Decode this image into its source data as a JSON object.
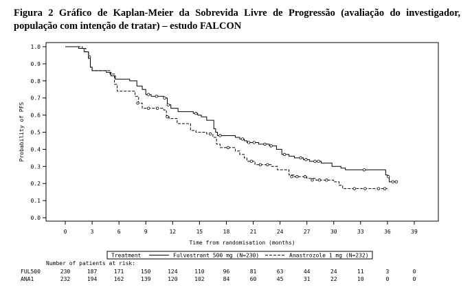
{
  "figure_title": "Figura 2 Gráfico de Kaplan-Meier da Sobrevida Livre de Progressão (avaliação do investigador, população com intenção de tratar) – estudo FALCON",
  "chart_data": {
    "type": "line",
    "xlabel": "Time from randomisation (months)",
    "ylabel": "Probability of PFS",
    "xlim": [
      0,
      39
    ],
    "ylim": [
      0,
      1
    ],
    "x_ticks": [
      "0",
      "3",
      "6",
      "9",
      "12",
      "15",
      "18",
      "21",
      "24",
      "27",
      "30",
      "33",
      "36",
      "39"
    ],
    "y_ticks": [
      "0.0",
      "0.1",
      "0.2",
      "0.3",
      "0.4",
      "0.5",
      "0.6",
      "0.7",
      "0.8",
      "0.9",
      "1.0"
    ],
    "legend": {
      "title": "Treatment",
      "position": "bottom",
      "entries": [
        "Fulvestrant 500 mg (N=230)",
        "Anastrozole 1 mg (N=232)"
      ]
    },
    "grid": false,
    "series": [
      {
        "name": "Fulvestrant 500 mg (N=230)",
        "style": "solid",
        "color": "#000000",
        "points": [
          [
            0,
            1.0
          ],
          [
            1.5,
            0.99
          ],
          [
            2.1,
            0.97
          ],
          [
            2.6,
            0.94
          ],
          [
            2.8,
            0.88
          ],
          [
            3.0,
            0.86
          ],
          [
            4.6,
            0.85
          ],
          [
            5.1,
            0.83
          ],
          [
            5.6,
            0.81
          ],
          [
            7.2,
            0.8
          ],
          [
            8.0,
            0.77
          ],
          [
            8.6,
            0.75
          ],
          [
            9.0,
            0.72
          ],
          [
            9.6,
            0.71
          ],
          [
            11.0,
            0.7
          ],
          [
            11.4,
            0.66
          ],
          [
            11.8,
            0.64
          ],
          [
            12.6,
            0.62
          ],
          [
            14.3,
            0.61
          ],
          [
            14.8,
            0.6
          ],
          [
            15.2,
            0.59
          ],
          [
            15.8,
            0.57
          ],
          [
            16.6,
            0.52
          ],
          [
            16.8,
            0.5
          ],
          [
            17.0,
            0.48
          ],
          [
            19.0,
            0.47
          ],
          [
            19.5,
            0.46
          ],
          [
            20.0,
            0.45
          ],
          [
            20.3,
            0.44
          ],
          [
            21.6,
            0.43
          ],
          [
            22.8,
            0.42
          ],
          [
            23.6,
            0.4
          ],
          [
            24.2,
            0.37
          ],
          [
            25.0,
            0.36
          ],
          [
            25.6,
            0.35
          ],
          [
            26.6,
            0.34
          ],
          [
            27.3,
            0.33
          ],
          [
            28.6,
            0.32
          ],
          [
            29.8,
            0.3
          ],
          [
            30.8,
            0.29
          ],
          [
            31.3,
            0.28
          ],
          [
            35.8,
            0.25
          ],
          [
            36.0,
            0.24
          ],
          [
            36.2,
            0.21
          ]
        ],
        "end_x": 37.0,
        "censored": [
          [
            2.7,
            0.94
          ],
          [
            9.3,
            0.72
          ],
          [
            10.2,
            0.71
          ],
          [
            11.1,
            0.7
          ],
          [
            11.5,
            0.66
          ],
          [
            14.6,
            0.61
          ],
          [
            17.3,
            0.48
          ],
          [
            19.8,
            0.46
          ],
          [
            20.5,
            0.44
          ],
          [
            21.1,
            0.44
          ],
          [
            22.3,
            0.43
          ],
          [
            23.0,
            0.42
          ],
          [
            24.5,
            0.37
          ],
          [
            26.3,
            0.35
          ],
          [
            26.9,
            0.34
          ],
          [
            27.9,
            0.33
          ],
          [
            28.3,
            0.33
          ],
          [
            33.4,
            0.28
          ],
          [
            36.1,
            0.24
          ],
          [
            36.6,
            0.21
          ],
          [
            37.0,
            0.21
          ]
        ]
      },
      {
        "name": "Anastrozole 1 mg (N=232)",
        "style": "dashed",
        "color": "#000000",
        "points": [
          [
            0,
            1.0
          ],
          [
            1.9,
            0.99
          ],
          [
            2.3,
            0.97
          ],
          [
            2.6,
            0.93
          ],
          [
            2.8,
            0.88
          ],
          [
            3.0,
            0.86
          ],
          [
            5.0,
            0.84
          ],
          [
            5.5,
            0.78
          ],
          [
            5.8,
            0.74
          ],
          [
            7.8,
            0.71
          ],
          [
            8.2,
            0.67
          ],
          [
            8.6,
            0.64
          ],
          [
            11.0,
            0.63
          ],
          [
            11.3,
            0.59
          ],
          [
            11.6,
            0.58
          ],
          [
            12.5,
            0.55
          ],
          [
            14.0,
            0.51
          ],
          [
            14.6,
            0.5
          ],
          [
            15.8,
            0.49
          ],
          [
            16.5,
            0.47
          ],
          [
            16.9,
            0.43
          ],
          [
            17.3,
            0.41
          ],
          [
            19.0,
            0.39
          ],
          [
            19.5,
            0.37
          ],
          [
            20.0,
            0.35
          ],
          [
            20.3,
            0.33
          ],
          [
            21.2,
            0.31
          ],
          [
            23.0,
            0.3
          ],
          [
            23.7,
            0.28
          ],
          [
            25.0,
            0.25
          ],
          [
            25.6,
            0.24
          ],
          [
            26.3,
            0.24
          ],
          [
            27.0,
            0.23
          ],
          [
            28.0,
            0.22
          ],
          [
            30.0,
            0.21
          ],
          [
            30.6,
            0.19
          ],
          [
            31.0,
            0.17
          ],
          [
            34.0,
            0.17
          ],
          [
            36.0,
            0.17
          ]
        ],
        "end_x": 36.0,
        "censored": [
          [
            8.1,
            0.67
          ],
          [
            9.3,
            0.64
          ],
          [
            10.3,
            0.64
          ],
          [
            11.4,
            0.59
          ],
          [
            16.2,
            0.49
          ],
          [
            18.2,
            0.41
          ],
          [
            20.8,
            0.33
          ],
          [
            21.8,
            0.31
          ],
          [
            22.6,
            0.31
          ],
          [
            25.3,
            0.24
          ],
          [
            25.9,
            0.24
          ],
          [
            26.8,
            0.24
          ],
          [
            27.6,
            0.22
          ],
          [
            28.4,
            0.22
          ],
          [
            29.2,
            0.22
          ],
          [
            32.3,
            0.17
          ],
          [
            33.5,
            0.17
          ],
          [
            35.0,
            0.17
          ],
          [
            35.7,
            0.17
          ]
        ]
      }
    ],
    "risk_table": {
      "heading": "Number of patients at risk:",
      "rows": [
        {
          "label": "FUL500",
          "values": [
            "230",
            "187",
            "171",
            "150",
            "124",
            "110",
            "96",
            "81",
            "63",
            "44",
            "24",
            "11",
            "3",
            "0"
          ]
        },
        {
          "label": "ANA1",
          "values": [
            "232",
            "194",
            "162",
            "139",
            "120",
            "102",
            "84",
            "60",
            "45",
            "31",
            "22",
            "10",
            "0",
            "0"
          ]
        }
      ]
    }
  }
}
